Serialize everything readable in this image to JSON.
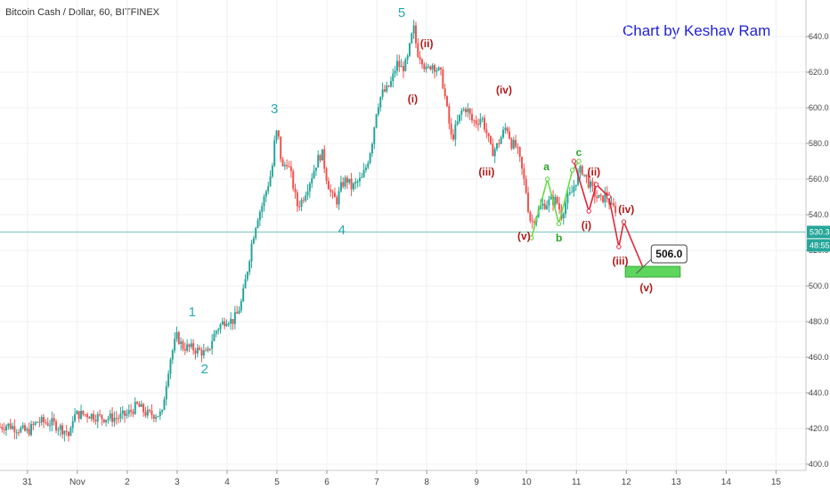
{
  "header": {
    "title": "Bitcoin Cash / Dollar, 60, BITFINEX",
    "credit": "Chart by Keshav Ram"
  },
  "colors": {
    "up": "#26a69a",
    "down": "#ef5350",
    "wave_major": "#26a8b0",
    "wave_minor": "#b11a1a",
    "abc": "#2aa62a",
    "current_line": "#6fc3b8",
    "target_box": "#5ed65e"
  },
  "chart_data": {
    "type": "candlestick",
    "symbol": "Bitcoin Cash / Dollar",
    "interval": "60",
    "exchange": "BITFINEX",
    "ylim": [
      396,
      657
    ],
    "y_ticks": [
      400,
      420,
      440,
      460,
      480,
      500,
      520,
      540,
      560,
      580,
      600,
      620,
      640
    ],
    "y_tick_labels": [
      "400.0",
      "420.0",
      "440.0",
      "460.0",
      "480.0",
      "500.0",
      "520.0",
      "540.0",
      "560.0",
      "580.0",
      "600.0",
      "620.0",
      "640.0"
    ],
    "x_ticks": [
      {
        "pos": 31,
        "label": "31"
      },
      {
        "pos": 32,
        "label": "Nov"
      },
      {
        "pos": 33,
        "label": "2"
      },
      {
        "pos": 34,
        "label": "3"
      },
      {
        "pos": 35,
        "label": "4"
      },
      {
        "pos": 36,
        "label": "5"
      },
      {
        "pos": 37,
        "label": "6"
      },
      {
        "pos": 38,
        "label": "7"
      },
      {
        "pos": 39,
        "label": "8"
      },
      {
        "pos": 40,
        "label": "9"
      },
      {
        "pos": 41,
        "label": "10"
      },
      {
        "pos": 42,
        "label": "11"
      },
      {
        "pos": 43,
        "label": "12"
      },
      {
        "pos": 44,
        "label": "13"
      },
      {
        "pos": 45,
        "label": "14"
      },
      {
        "pos": 46,
        "label": "15"
      }
    ],
    "xlim": [
      30.45,
      46.6
    ],
    "price_path": [
      [
        30.45,
        421
      ],
      [
        30.6,
        422
      ],
      [
        30.8,
        420
      ],
      [
        31.0,
        418
      ],
      [
        31.2,
        424
      ],
      [
        31.5,
        423
      ],
      [
        31.8,
        418
      ],
      [
        31.85,
        414
      ],
      [
        31.9,
        426
      ],
      [
        32.0,
        428
      ],
      [
        32.2,
        428
      ],
      [
        32.5,
        426
      ],
      [
        32.8,
        426
      ],
      [
        33.0,
        428
      ],
      [
        33.2,
        433
      ],
      [
        33.4,
        428
      ],
      [
        33.7,
        428
      ],
      [
        33.75,
        440
      ],
      [
        33.85,
        458
      ],
      [
        33.95,
        468
      ],
      [
        34.0,
        472
      ],
      [
        34.1,
        466
      ],
      [
        34.3,
        465
      ],
      [
        34.5,
        463
      ],
      [
        34.6,
        461
      ],
      [
        34.7,
        470
      ],
      [
        34.8,
        476
      ],
      [
        35.0,
        482
      ],
      [
        35.1,
        480
      ],
      [
        35.2,
        484
      ],
      [
        35.3,
        492
      ],
      [
        35.4,
        508
      ],
      [
        35.5,
        525
      ],
      [
        35.6,
        538
      ],
      [
        35.7,
        545
      ],
      [
        35.8,
        555
      ],
      [
        35.9,
        565
      ],
      [
        35.95,
        580
      ],
      [
        36.0,
        587
      ],
      [
        36.05,
        580
      ],
      [
        36.1,
        565
      ],
      [
        36.2,
        570
      ],
      [
        36.3,
        560
      ],
      [
        36.4,
        545
      ],
      [
        36.5,
        548
      ],
      [
        36.6,
        555
      ],
      [
        36.7,
        562
      ],
      [
        36.8,
        570
      ],
      [
        36.9,
        575
      ],
      [
        37.0,
        560
      ],
      [
        37.1,
        550
      ],
      [
        37.2,
        548
      ],
      [
        37.3,
        557
      ],
      [
        37.4,
        560
      ],
      [
        37.5,
        555
      ],
      [
        37.6,
        558
      ],
      [
        37.7,
        560
      ],
      [
        37.8,
        568
      ],
      [
        37.9,
        580
      ],
      [
        38.0,
        600
      ],
      [
        38.1,
        608
      ],
      [
        38.2,
        610
      ],
      [
        38.3,
        615
      ],
      [
        38.4,
        625
      ],
      [
        38.5,
        622
      ],
      [
        38.6,
        625
      ],
      [
        38.7,
        640
      ],
      [
        38.75,
        645
      ],
      [
        38.8,
        632
      ],
      [
        38.9,
        628
      ],
      [
        39.0,
        620
      ],
      [
        39.1,
        625
      ],
      [
        39.2,
        622
      ],
      [
        39.3,
        618
      ],
      [
        39.4,
        600
      ],
      [
        39.5,
        582
      ],
      [
        39.6,
        590
      ],
      [
        39.7,
        598
      ],
      [
        39.8,
        600
      ],
      [
        39.9,
        593
      ],
      [
        40.0,
        592
      ],
      [
        40.1,
        595
      ],
      [
        40.2,
        586
      ],
      [
        40.3,
        575
      ],
      [
        40.4,
        578
      ],
      [
        40.5,
        584
      ],
      [
        40.6,
        590
      ],
      [
        40.7,
        580
      ],
      [
        40.8,
        578
      ],
      [
        40.9,
        566
      ],
      [
        41.0,
        552
      ],
      [
        41.05,
        540
      ],
      [
        41.1,
        535
      ],
      [
        41.15,
        538
      ],
      [
        41.3,
        545
      ],
      [
        41.5,
        548
      ],
      [
        41.6,
        548
      ],
      [
        41.7,
        540
      ],
      [
        41.8,
        548
      ],
      [
        41.9,
        552
      ],
      [
        42.0,
        560
      ],
      [
        42.1,
        566
      ],
      [
        42.2,
        560
      ],
      [
        42.3,
        555
      ],
      [
        42.4,
        550
      ],
      [
        42.5,
        548
      ],
      [
        42.6,
        552
      ],
      [
        42.7,
        544
      ],
      [
        42.8,
        543
      ]
    ],
    "current_price": 530.3,
    "price_label": "530.3",
    "countdown_label": "48:55",
    "target_label": "506.0",
    "target_zone": {
      "x0": 42.98,
      "x1": 44.08,
      "y0": 505,
      "y1": 511
    },
    "red_projection": {
      "x": [
        41.95,
        42.25,
        42.4,
        42.65,
        42.85,
        42.95,
        43.4
      ],
      "y": [
        570,
        542,
        557,
        550,
        522,
        536,
        506
      ]
    },
    "abc_projection": {
      "x": [
        41.1,
        41.42,
        41.65,
        41.92,
        42.05
      ],
      "y": [
        527,
        560,
        535,
        565,
        570
      ]
    },
    "annotations": [
      {
        "label": "1",
        "x": 34.3,
        "y": 483,
        "style": "major"
      },
      {
        "label": "2",
        "x": 34.55,
        "y": 451,
        "style": "major"
      },
      {
        "label": "3",
        "x": 35.95,
        "y": 597,
        "style": "major"
      },
      {
        "label": "4",
        "x": 37.3,
        "y": 529,
        "style": "major"
      },
      {
        "label": "5",
        "x": 38.5,
        "y": 651,
        "style": "major"
      },
      {
        "label": "(ii)",
        "x": 39.0,
        "y": 634,
        "style": "minor"
      },
      {
        "label": "(i)",
        "x": 38.72,
        "y": 603,
        "style": "minor"
      },
      {
        "label": "(iv)",
        "x": 40.55,
        "y": 608,
        "style": "minor"
      },
      {
        "label": "(iii)",
        "x": 40.2,
        "y": 562,
        "style": "minor"
      },
      {
        "label": "(v)",
        "x": 40.95,
        "y": 526,
        "style": "minor"
      },
      {
        "label": "a",
        "x": 41.4,
        "y": 565,
        "style": "abc"
      },
      {
        "label": "b",
        "x": 41.65,
        "y": 525,
        "style": "abc"
      },
      {
        "label": "c",
        "x": 42.05,
        "y": 573,
        "style": "abc"
      },
      {
        "label": "(ii)",
        "x": 42.35,
        "y": 562,
        "style": "minor"
      },
      {
        "label": "(i)",
        "x": 42.2,
        "y": 532,
        "style": "minor"
      },
      {
        "label": "(iv)",
        "x": 43.0,
        "y": 541,
        "style": "minor"
      },
      {
        "label": "(iii)",
        "x": 42.88,
        "y": 512,
        "style": "minor"
      },
      {
        "label": "(v)",
        "x": 43.4,
        "y": 497,
        "style": "minor"
      }
    ]
  }
}
